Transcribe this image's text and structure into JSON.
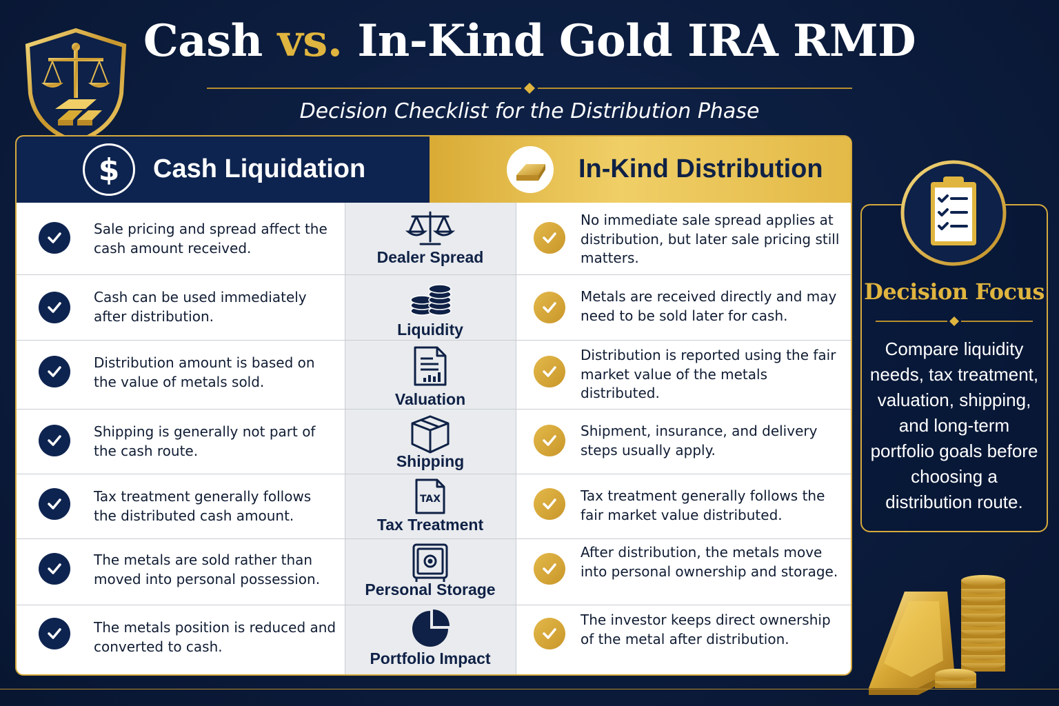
{
  "header": {
    "title_part1": "Cash ",
    "title_vs": "vs.",
    "title_part2": " In-Kind Gold IRA RMD",
    "subtitle": "Decision Checklist for the Distribution Phase"
  },
  "columns": {
    "cash": {
      "icon": "dollar-icon",
      "symbol": "$",
      "label": "Cash Liquidation"
    },
    "in_kind": {
      "icon": "gold-bar-icon",
      "label": "In-Kind Distribution"
    }
  },
  "rows": [
    {
      "topic": "Dealer Spread",
      "icon": "scales-icon",
      "cash": "Sale pricing and spread affect the cash amount received.",
      "in_kind": "No immediate sale spread applies at distribution, but later sale pricing still matters."
    },
    {
      "topic": "Liquidity",
      "icon": "coin-stack-icon",
      "cash": "Cash can be used immediately after distribution.",
      "in_kind": "Metals are received directly and may need to be sold later for cash."
    },
    {
      "topic": "Valuation",
      "icon": "document-chart-icon",
      "cash": "Distribution amount is based on the value of metals sold.",
      "in_kind": "Distribution is reported using the fair market value of the metals distributed."
    },
    {
      "topic": "Shipping",
      "icon": "box-icon",
      "cash": "Shipping is generally not part of the cash route.",
      "in_kind": "Shipment, insurance, and delivery steps usually apply."
    },
    {
      "topic": "Tax Treatment",
      "icon": "tax-document-icon",
      "icon_text": "TAX",
      "cash": "Tax treatment generally follows the distributed cash amount.",
      "in_kind": "Tax treatment generally follows the fair market value distributed."
    },
    {
      "topic": "Personal Storage",
      "icon": "safe-icon",
      "cash": "The metals are sold rather than moved into personal possession.",
      "in_kind": "After distribution, the metals move into personal ownership and storage."
    },
    {
      "topic": "Portfolio Impact",
      "icon": "pie-chart-icon",
      "cash": "The metals position is reduced and converted to cash.",
      "in_kind": "The investor keeps direct ownership of the metal after distribution."
    }
  ],
  "focus": {
    "icon": "clipboard-checklist-icon",
    "title": "Decision Focus",
    "body": "Compare liquidity needs, tax treatment, valuation, shipping, and long-term portfolio goals before choosing a distribution route."
  },
  "colors": {
    "navy": "#0e2450",
    "gold": "#e0b53f",
    "background": "#0b1b3b"
  }
}
